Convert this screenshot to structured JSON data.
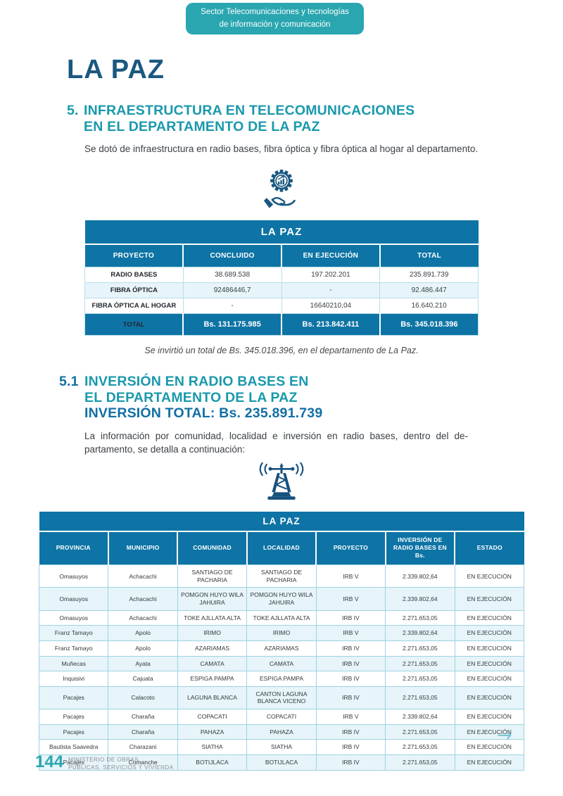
{
  "colors": {
    "teal_badge": "#2AA6B0",
    "teal_heading": "#1999AC",
    "navy_title": "#1A5880",
    "table_header_blue": "#0E74A5",
    "row_tint": "#E7F4F9",
    "arrow": "#7BC6D4",
    "footer_gray": "#8E9396"
  },
  "badge": {
    "line1": "Sector Telecomunicaciones y tecnologías",
    "line2": "de información y comunicación"
  },
  "page_title": "LA PAZ",
  "section_5": {
    "number": "5.",
    "heading_line1": "INFRAESTRUCTURA EN TELECOMUNICACIONES",
    "heading_line2": "EN EL DEPARTAMENTO DE LA PAZ",
    "intro": "Se dotó de infraestructura en radio bases, fibra óptica y fibra óptica al hogar al departamento."
  },
  "icons": {
    "innovation_icon": "gear-chart-hand",
    "tower_icon": "radio-tower",
    "next_arrow": "→"
  },
  "infrastructure_table": {
    "title": "LA PAZ",
    "columns": [
      "PROYECTO",
      "CONCLUIDO",
      "EN EJECUCIÓN",
      "TOTAL"
    ],
    "rows": [
      [
        "RADIO BASES",
        "38.689.538",
        "197.202.201",
        "235.891.739"
      ],
      [
        "FIBRA ÓPTICA",
        "92486446,7",
        "-",
        "92.486.447"
      ],
      [
        "FIBRA ÓPTICA AL HOGAR",
        "-",
        "16640210,04",
        "16.640.210"
      ]
    ],
    "total_row": [
      "TOTAL",
      "Bs. 131.175.985",
      "Bs. 213.842.411",
      "Bs. 345.018.396"
    ]
  },
  "table_caption": "Se invirtió un total de Bs. 345.018.396, en el departamento de La Paz.",
  "section_5_1": {
    "number": "5.1",
    "heading_line1": "INVERSIÓN EN RADIO BASES EN",
    "heading_line2": "EL DEPARTAMENTO DE LA PAZ",
    "heading_line3": "INVERSIÓN TOTAL:  Bs. 235.891.739",
    "intro_line1": "La información por comunidad, localidad e inversión en radio bases, dentro del de-",
    "intro_line2": "partamento, se detalla a continuación:"
  },
  "radio_bases_table": {
    "title": "LA PAZ",
    "columns": [
      "PROVINCIA",
      "MUNICIPIO",
      "COMUNIDAD",
      "LOCALIDAD",
      "PROYECTO",
      "INVERSIÓN DE RADIO BASES EN Bs.",
      "ESTADO"
    ],
    "rows": [
      [
        "Omasuyos",
        "Achacachi",
        "SANTIAGO DE PACHARIA",
        "SANTIAGO DE PACHARIA",
        "IRB V",
        "2.339.802,64",
        "EN EJECUCIÓN"
      ],
      [
        "Omasuyos",
        "Achacachi",
        "POMGON HUYO WILA JAHUIRA",
        "POMGON HUYO WILA JAHUIRA",
        "IRB V",
        "2.339.802,64",
        "EN EJECUCIÓN"
      ],
      [
        "Omasuyos",
        "Achacachi",
        "TOKE AJLLATA ALTA",
        "TOKE AJLLATA ALTA",
        "IRB IV",
        "2.271.653,05",
        "EN EJECUCIÓN"
      ],
      [
        "Franz Tamayo",
        "Apolo",
        "IRIMO",
        "IRIMO",
        "IRB V",
        "2.339.802,64",
        "EN EJECUCIÓN"
      ],
      [
        "Franz Tamayo",
        "Apolo",
        "AZARIAMAS",
        "AZARIAMAS",
        "IRB IV",
        "2.271.653,05",
        "EN EJECUCIÓN"
      ],
      [
        "Muñecas",
        "Ayata",
        "CAMATA",
        "CAMATA",
        "IRB IV",
        "2.271.653,05",
        "EN EJECUCIÓN"
      ],
      [
        "Inquisivi",
        "Cajuata",
        "ESPIGA PAMPA",
        "ESPIGA PAMPA",
        "IRB IV",
        "2.271.653,05",
        "EN EJECUCIÓN"
      ],
      [
        "Pacajes",
        "Calacoto",
        "LAGUNA BLANCA",
        "CANTON LAGUNA BLANCA VICENO",
        "IRB IV",
        "2.271.653,05",
        "EN EJECUCIÓN"
      ],
      [
        "Pacajes",
        "Charaña",
        "COPACATI",
        "COPACATI",
        "IRB V",
        "2.339.802,64",
        "EN EJECUCIÓN"
      ],
      [
        "Pacajes",
        "Charaña",
        "PAHAZA",
        "PAHAZA",
        "IRB IV",
        "2.271.653,05",
        "EN EJECUCIÓN"
      ],
      [
        "Bautista Saavedra",
        "Charazani",
        "SIATHA",
        "SIATHA",
        "IRB IV",
        "2.271.653,05",
        "EN EJECUCIÓN"
      ],
      [
        "Pacajes",
        "Comanche",
        "BOTIJLACA",
        "BOTIJLACA",
        "IRB IV",
        "2.271.653,05",
        "EN EJECUCIÓN"
      ]
    ]
  },
  "footer": {
    "page_number": "144",
    "ministry_line1": "MINISTERIO DE OBRAS",
    "ministry_line2": "PÚBLICAS, SERVICIOS Y VIVIENDA"
  }
}
